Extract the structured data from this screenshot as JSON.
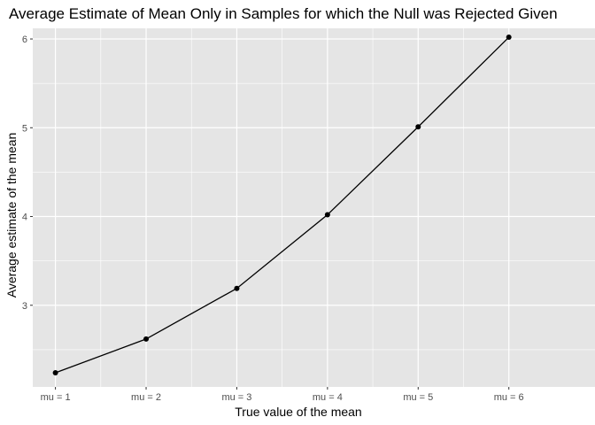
{
  "chart_data": {
    "type": "line",
    "title": "Average Estimate of Mean Only in Samples for which the Null was Rejected Given",
    "xlabel": "True value of the mean",
    "ylabel": "Average estimate of the mean",
    "categories": [
      "mu = 1",
      "mu = 2",
      "mu = 3",
      "mu = 4",
      "mu = 5",
      "mu = 6"
    ],
    "values": [
      2.24,
      2.62,
      3.19,
      4.02,
      5.01,
      6.02
    ],
    "ylim": [
      2.08,
      6.12
    ],
    "y_ticks": [
      3,
      4,
      5,
      6
    ],
    "y_tick_labels": [
      "3",
      "4",
      "5",
      "6"
    ],
    "grid": true,
    "colors": {
      "panel": "#e5e5e5",
      "grid": "#ffffff",
      "line": "#000000",
      "point": "#000000"
    }
  }
}
